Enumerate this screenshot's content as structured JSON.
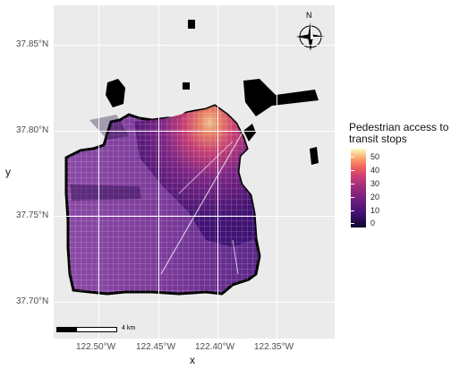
{
  "axes": {
    "x_title": "x",
    "y_title": "y",
    "x_ticks": [
      "122.50°W",
      "122.45°W",
      "122.40°W",
      "122.35°W"
    ],
    "y_ticks": [
      "37.85°N",
      "37.80°N",
      "37.75°N",
      "37.70°N"
    ]
  },
  "legend": {
    "title_line1": "Pedestrian access to",
    "title_line2": "transit stops",
    "values": [
      "50",
      "40",
      "30",
      "20",
      "10",
      "0"
    ],
    "colormap": [
      "#0d0829",
      "#3b0f70",
      "#6a1c80",
      "#9a2b7c",
      "#cf4071",
      "#f1605d",
      "#fca56e",
      "#fcfdbf"
    ]
  },
  "scalebar": {
    "label": "4 km"
  },
  "north_arrow": {
    "label": "N"
  },
  "colors": {
    "panel_bg": "#ebebeb",
    "grid": "#ffffff",
    "land_outline": "#000000",
    "street_lines": "#ffffff"
  }
}
